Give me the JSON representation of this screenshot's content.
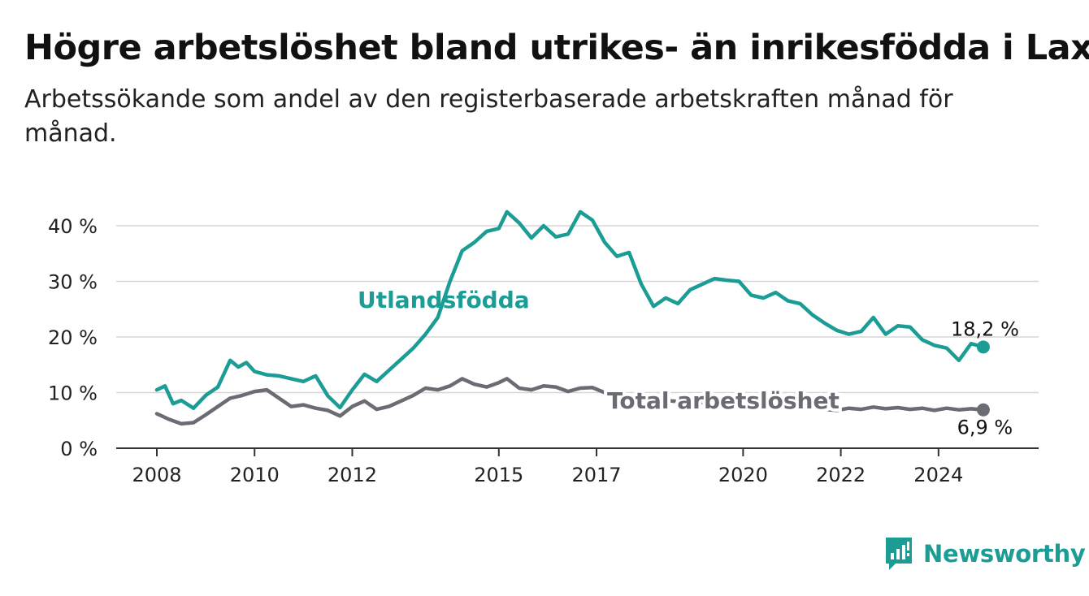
{
  "title": "Högre arbetslöshet bland utrikes- än inrikesfödda i Laxå",
  "subtitle": "Arbetssökande som andel av den registerbaserade arbetskraften månad för månad.",
  "brand": {
    "name": "Newsworthy",
    "icon": "newsworthy-logo-icon",
    "color": "#1b9c94"
  },
  "chart_data": {
    "type": "line",
    "title": "Högre arbetslöshet bland utrikes- än inrikesfödda i Laxå",
    "subtitle": "Arbetssökande som andel av den registerbaserade arbetskraften månad för månad.",
    "xlabel": "",
    "ylabel": "",
    "ylim": [
      0,
      40
    ],
    "xlim": [
      "2008-01",
      "2025-06"
    ],
    "grid": true,
    "y_ticks": [
      0,
      10,
      20,
      30,
      40
    ],
    "y_tick_labels": [
      "0 %",
      "10 %",
      "20 %",
      "30 %",
      "40 %"
    ],
    "x_ticks": [
      "2008-01",
      "2010-01",
      "2012-01",
      "2015-01",
      "2017-01",
      "2020-01",
      "2022-01",
      "2024-01"
    ],
    "x_tick_labels": [
      "2008",
      "2010",
      "2012",
      "2015",
      "2017",
      "2020",
      "2022",
      "2024"
    ],
    "series": [
      {
        "name": "Utlandsfödda",
        "color": "#1b9c94",
        "end_label": "18,2 %",
        "points": [
          [
            "2008-01",
            10.5
          ],
          [
            "2008-03",
            11.2
          ],
          [
            "2008-05",
            8.0
          ],
          [
            "2008-07",
            8.6
          ],
          [
            "2008-10",
            7.2
          ],
          [
            "2009-01",
            9.5
          ],
          [
            "2009-04",
            11.0
          ],
          [
            "2009-07",
            15.8
          ],
          [
            "2009-09",
            14.6
          ],
          [
            "2009-11",
            15.4
          ],
          [
            "2010-01",
            13.8
          ],
          [
            "2010-04",
            13.2
          ],
          [
            "2010-07",
            13.0
          ],
          [
            "2010-10",
            12.5
          ],
          [
            "2011-01",
            12.0
          ],
          [
            "2011-04",
            13.0
          ],
          [
            "2011-07",
            9.4
          ],
          [
            "2011-10",
            7.3
          ],
          [
            "2012-01",
            10.5
          ],
          [
            "2012-04",
            13.3
          ],
          [
            "2012-07",
            12.0
          ],
          [
            "2012-10",
            14.0
          ],
          [
            "2013-01",
            16.0
          ],
          [
            "2013-04",
            18.0
          ],
          [
            "2013-07",
            20.5
          ],
          [
            "2013-10",
            23.5
          ],
          [
            "2014-01",
            30.0
          ],
          [
            "2014-04",
            35.5
          ],
          [
            "2014-07",
            37.0
          ],
          [
            "2014-10",
            39.0
          ],
          [
            "2015-01",
            39.5
          ],
          [
            "2015-03",
            42.5
          ],
          [
            "2015-06",
            40.5
          ],
          [
            "2015-09",
            37.8
          ],
          [
            "2015-12",
            40.0
          ],
          [
            "2016-03",
            38.0
          ],
          [
            "2016-06",
            38.5
          ],
          [
            "2016-09",
            42.5
          ],
          [
            "2016-12",
            41.0
          ],
          [
            "2017-03",
            37.0
          ],
          [
            "2017-06",
            34.5
          ],
          [
            "2017-09",
            35.2
          ],
          [
            "2017-12",
            29.5
          ],
          [
            "2018-03",
            25.5
          ],
          [
            "2018-06",
            27.0
          ],
          [
            "2018-09",
            26.0
          ],
          [
            "2018-12",
            28.5
          ],
          [
            "2019-03",
            29.5
          ],
          [
            "2019-06",
            30.5
          ],
          [
            "2019-09",
            30.2
          ],
          [
            "2019-12",
            30.0
          ],
          [
            "2020-03",
            27.5
          ],
          [
            "2020-06",
            27.0
          ],
          [
            "2020-09",
            28.0
          ],
          [
            "2020-12",
            26.5
          ],
          [
            "2021-03",
            26.0
          ],
          [
            "2021-06",
            24.0
          ],
          [
            "2021-09",
            22.5
          ],
          [
            "2021-12",
            21.2
          ],
          [
            "2022-03",
            20.5
          ],
          [
            "2022-06",
            21.0
          ],
          [
            "2022-09",
            23.5
          ],
          [
            "2022-12",
            20.5
          ],
          [
            "2023-03",
            22.0
          ],
          [
            "2023-06",
            21.8
          ],
          [
            "2023-09",
            19.5
          ],
          [
            "2023-12",
            18.5
          ],
          [
            "2024-03",
            18.0
          ],
          [
            "2024-06",
            15.8
          ],
          [
            "2024-09",
            18.8
          ],
          [
            "2024-12",
            18.2
          ]
        ]
      },
      {
        "name": "Total arbetslöshet",
        "color": "#6b6b73",
        "end_label": "6,9 %",
        "points": [
          [
            "2008-01",
            6.2
          ],
          [
            "2008-04",
            5.2
          ],
          [
            "2008-07",
            4.4
          ],
          [
            "2008-10",
            4.6
          ],
          [
            "2009-01",
            6.0
          ],
          [
            "2009-04",
            7.5
          ],
          [
            "2009-07",
            9.0
          ],
          [
            "2009-10",
            9.5
          ],
          [
            "2010-01",
            10.2
          ],
          [
            "2010-04",
            10.5
          ],
          [
            "2010-07",
            9.0
          ],
          [
            "2010-10",
            7.5
          ],
          [
            "2011-01",
            7.8
          ],
          [
            "2011-04",
            7.2
          ],
          [
            "2011-07",
            6.8
          ],
          [
            "2011-10",
            5.8
          ],
          [
            "2012-01",
            7.5
          ],
          [
            "2012-04",
            8.5
          ],
          [
            "2012-07",
            7.0
          ],
          [
            "2012-10",
            7.5
          ],
          [
            "2013-01",
            8.5
          ],
          [
            "2013-04",
            9.5
          ],
          [
            "2013-07",
            10.8
          ],
          [
            "2013-10",
            10.5
          ],
          [
            "2014-01",
            11.2
          ],
          [
            "2014-04",
            12.5
          ],
          [
            "2014-07",
            11.5
          ],
          [
            "2014-10",
            11.0
          ],
          [
            "2015-01",
            11.8
          ],
          [
            "2015-03",
            12.5
          ],
          [
            "2015-06",
            10.8
          ],
          [
            "2015-09",
            10.5
          ],
          [
            "2015-12",
            11.2
          ],
          [
            "2016-03",
            11.0
          ],
          [
            "2016-06",
            10.2
          ],
          [
            "2016-09",
            10.8
          ],
          [
            "2016-12",
            10.9
          ],
          [
            "2017-03",
            10.0
          ],
          [
            "2017-06",
            9.5
          ],
          [
            "2017-09",
            9.2
          ],
          [
            "2017-12",
            8.8
          ],
          [
            "2018-03",
            8.5
          ],
          [
            "2018-06",
            8.6
          ],
          [
            "2018-09",
            8.4
          ],
          [
            "2018-12",
            8.3
          ],
          [
            "2019-03",
            8.2
          ],
          [
            "2019-06",
            8.0
          ],
          [
            "2019-09",
            8.1
          ],
          [
            "2019-12",
            7.9
          ],
          [
            "2020-03",
            7.8
          ],
          [
            "2020-06",
            8.0
          ],
          [
            "2020-09",
            7.6
          ],
          [
            "2020-12",
            7.5
          ],
          [
            "2021-03",
            7.3
          ],
          [
            "2021-06",
            7.2
          ],
          [
            "2021-09",
            7.0
          ],
          [
            "2021-12",
            6.8
          ],
          [
            "2022-03",
            7.2
          ],
          [
            "2022-06",
            7.0
          ],
          [
            "2022-09",
            7.4
          ],
          [
            "2022-12",
            7.1
          ],
          [
            "2023-03",
            7.3
          ],
          [
            "2023-06",
            7.0
          ],
          [
            "2023-09",
            7.2
          ],
          [
            "2023-12",
            6.8
          ],
          [
            "2024-03",
            7.2
          ],
          [
            "2024-06",
            6.9
          ],
          [
            "2024-09",
            7.1
          ],
          [
            "2024-12",
            6.9
          ]
        ]
      }
    ]
  }
}
